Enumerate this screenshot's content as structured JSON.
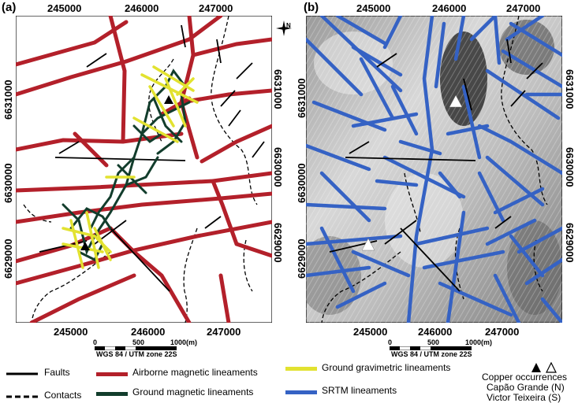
{
  "panels": [
    {
      "label": "(a)",
      "x_ticks": [
        "245000",
        "246000",
        "247000"
      ],
      "x_ticks_bottom": [
        "245000",
        "246000",
        "247000"
      ],
      "y_left": [
        "6631000",
        "6630000",
        "6629000"
      ],
      "y_right": [
        "6631000",
        "6630000",
        "6629000"
      ]
    },
    {
      "label": "(b)",
      "x_ticks": [
        "245000",
        "246000",
        "247000"
      ],
      "x_ticks_bottom": [
        "245000",
        "246000",
        "247000"
      ],
      "y_left": [
        "6631000",
        "6630000",
        "6629000"
      ],
      "y_right": [
        "6631000",
        "6630000",
        "6629000"
      ]
    }
  ],
  "north": {
    "n": "N"
  },
  "scale": {
    "ticks": [
      "0",
      "500",
      "1000(m)"
    ],
    "crs": "WGS 84 / UTM zone 22S"
  },
  "legend": {
    "faults": "Faults",
    "contacts": "Contacts",
    "airborne": "Airborne  magnetic lineaments",
    "ground_mag": "Ground magnetic lineaments",
    "ground_grav": "Ground gravimetric lineaments",
    "srtm": "SRTM lineaments",
    "copper_title": "Copper occurrences",
    "capao": "Capão Grande (N)",
    "victor": "Victor Teixeira (S)"
  },
  "colors": {
    "airborne": "#b3202a",
    "ground_mag": "#123d2c",
    "ground_grav": "#e2e230",
    "srtm": "#3562c4"
  }
}
